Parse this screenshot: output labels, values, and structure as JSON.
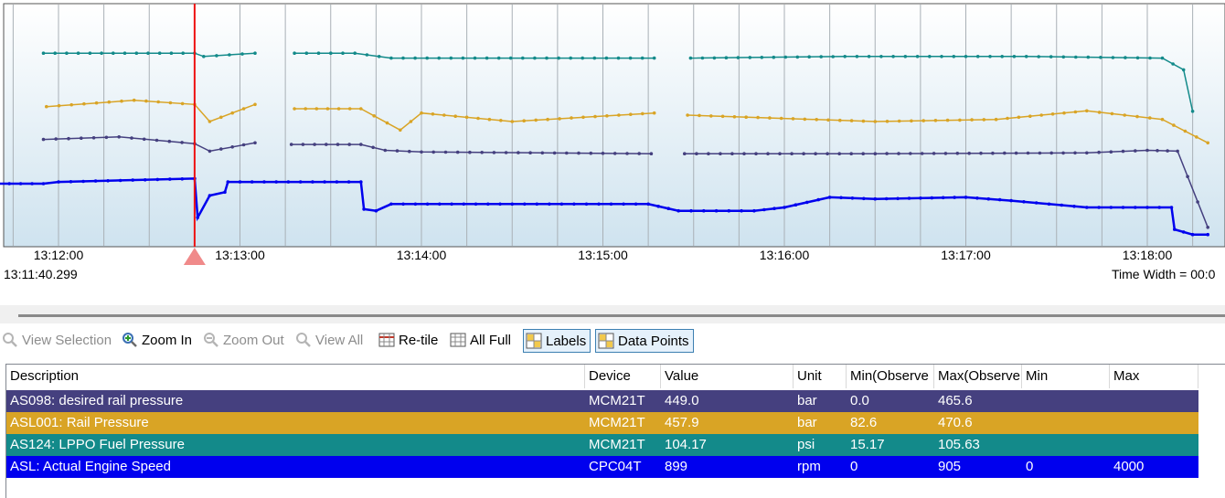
{
  "chart_data": {
    "type": "line",
    "x_ticks": [
      "13:12:00",
      "13:13:00",
      "13:14:00",
      "13:15:00",
      "13:16:00",
      "13:17:00",
      "13:18:00"
    ],
    "start_time": "13:11:40.299",
    "time_width_label": "Time Width = 00:0",
    "cursor_time": "13:12:45",
    "series": [
      {
        "name": "AS124: LPPO Fuel Pressure",
        "color": "#138a8a",
        "segments": [
          [
            [
              "13:11:55",
              104.0
            ],
            [
              "13:12:45",
              104.0
            ],
            [
              "13:12:48",
              103.6
            ],
            [
              "13:13:05",
              104.0
            ]
          ],
          [
            [
              "13:13:18",
              104.0
            ],
            [
              "13:13:38",
              104.0
            ],
            [
              "13:13:50",
              103.4
            ],
            [
              "13:15:17",
              103.4
            ]
          ],
          [
            [
              "13:15:29",
              103.4
            ],
            [
              "13:16:20",
              103.6
            ],
            [
              "13:17:20",
              103.6
            ],
            [
              "13:18:05",
              103.4
            ],
            [
              "13:18:12",
              102.0
            ],
            [
              "13:18:15",
              97.0
            ]
          ]
        ]
      },
      {
        "name": "ASL001: Rail Pressure",
        "color": "#d9a425",
        "segments": [
          [
            [
              "13:11:56",
              462
            ],
            [
              "13:12:25",
              465
            ],
            [
              "13:12:45",
              463
            ],
            [
              "13:12:50",
              455
            ],
            [
              "13:13:05",
              463
            ]
          ],
          [
            [
              "13:13:18",
              461
            ],
            [
              "13:13:40",
              461
            ],
            [
              "13:13:53",
              451
            ],
            [
              "13:14:00",
              459
            ],
            [
              "13:14:30",
              455
            ],
            [
              "13:15:17",
              459
            ]
          ],
          [
            [
              "13:15:28",
              458
            ],
            [
              "13:16:30",
              455
            ],
            [
              "13:17:10",
              456
            ],
            [
              "13:17:40",
              460
            ],
            [
              "13:18:05",
              456
            ],
            [
              "13:18:20",
              445
            ]
          ]
        ]
      },
      {
        "name": "AS098: desired rail pressure",
        "color": "#45407f",
        "segments": [
          [
            [
              "13:11:55",
              455
            ],
            [
              "13:12:20",
              458
            ],
            [
              "13:12:45",
              450
            ],
            [
              "13:12:50",
              441
            ],
            [
              "13:13:05",
              451
            ]
          ],
          [
            [
              "13:13:17",
              449
            ],
            [
              "13:13:40",
              449
            ],
            [
              "13:13:48",
              442
            ],
            [
              "13:14:00",
              440
            ],
            [
              "13:15:16",
              438
            ]
          ],
          [
            [
              "13:15:27",
              438
            ],
            [
              "13:16:30",
              438
            ],
            [
              "13:17:40",
              439
            ],
            [
              "13:18:00",
              442
            ],
            [
              "13:18:10",
              441
            ],
            [
              "13:18:20",
              350
            ]
          ]
        ]
      },
      {
        "name": "ASL: Actual Engine Speed",
        "color": "#0000ee",
        "segments": [
          [
            [
              "13:11:40",
              905
            ],
            [
              "13:11:55",
              905
            ],
            [
              "13:12:00",
              906
            ],
            [
              "13:12:45",
              908
            ],
            [
              "13:12:46",
              885
            ],
            [
              "13:12:50",
              898
            ],
            [
              "13:12:55",
              900
            ],
            [
              "13:12:56",
              906
            ],
            [
              "13:13:40",
              906
            ],
            [
              "13:13:41",
              890
            ],
            [
              "13:13:45",
              889
            ],
            [
              "13:13:50",
              893
            ],
            [
              "13:14:30",
              893
            ],
            [
              "13:15:15",
              893
            ],
            [
              "13:15:25",
              889
            ],
            [
              "13:15:50",
              889
            ],
            [
              "13:16:00",
              891
            ],
            [
              "13:16:15",
              897
            ],
            [
              "13:16:30",
              896
            ],
            [
              "13:17:00",
              897
            ],
            [
              "13:17:15",
              895
            ],
            [
              "13:17:40",
              891
            ],
            [
              "13:18:00",
              891
            ],
            [
              "13:18:08",
              891
            ],
            [
              "13:18:09",
              878
            ],
            [
              "13:18:15",
              875
            ],
            [
              "13:18:20",
              875
            ]
          ]
        ]
      }
    ]
  },
  "toolbar": {
    "view_selection": "View Selection",
    "zoom_in": "Zoom In",
    "zoom_out": "Zoom Out",
    "view_all": "View All",
    "retile": "Re-tile",
    "all_full": "All Full",
    "labels": "Labels",
    "data_points": "Data Points"
  },
  "table": {
    "headers": {
      "description": "Description",
      "device": "Device",
      "value": "Value",
      "unit": "Unit",
      "min_observed": "Min(Observe",
      "max_observed": "Max(Observe",
      "min": "Min",
      "max": "Max"
    },
    "rows": [
      {
        "description": "AS098: desired rail pressure",
        "device": "MCM21T",
        "value": "449.0",
        "unit": "bar",
        "min_observed": "0.0",
        "max_observed": "465.6",
        "min": "",
        "max": "",
        "color": "#45407f"
      },
      {
        "description": "ASL001: Rail Pressure",
        "device": "MCM21T",
        "value": "457.9",
        "unit": "bar",
        "min_observed": "82.6",
        "max_observed": "470.6",
        "min": "",
        "max": "",
        "color": "#d9a425"
      },
      {
        "description": "AS124: LPPO Fuel Pressure",
        "device": "MCM21T",
        "value": "104.17",
        "unit": "psi",
        "min_observed": "15.17",
        "max_observed": "105.63",
        "min": "",
        "max": "",
        "color": "#138a8a"
      },
      {
        "description": "ASL: Actual Engine Speed",
        "device": "CPC04T",
        "value": "899",
        "unit": "rpm",
        "min_observed": "0",
        "max_observed": "905",
        "min": "0",
        "max": "4000",
        "color": "#0000ee"
      }
    ]
  }
}
